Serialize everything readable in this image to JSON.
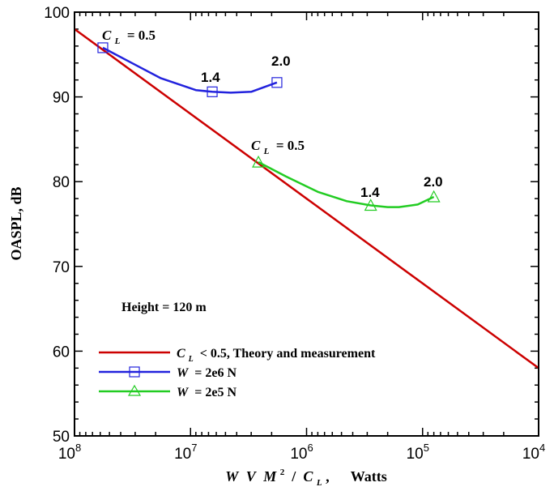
{
  "chart_data": {
    "type": "line",
    "title": "",
    "xlabel": "W V M^2 / C_L,  Watts",
    "xlabel_parts": {
      "w": "W",
      "v": "V",
      "m": "M",
      "sup": "2",
      "slash": " / ",
      "c": "C",
      "sub": "L",
      "tail": ",",
      "units": "Watts"
    },
    "ylabel": "OASPL, dB",
    "x_scale": "log",
    "x_reversed": true,
    "xlim": [
      100000000,
      10000
    ],
    "ylim": [
      50,
      100
    ],
    "x_ticks": [
      {
        "base": "10",
        "exp": "8",
        "value": 100000000
      },
      {
        "base": "10",
        "exp": "7",
        "value": 10000000
      },
      {
        "base": "10",
        "exp": "6",
        "value": 1000000
      },
      {
        "base": "10",
        "exp": "5",
        "value": 100000
      },
      {
        "base": "10",
        "exp": "4",
        "value": 10000
      }
    ],
    "y_ticks": [
      "50",
      "60",
      "70",
      "80",
      "90",
      "100"
    ],
    "legend_position": "bottom-left",
    "series": [
      {
        "name": "C_L < 0.5, Theory and measurement",
        "legend_parts": {
          "c": "C",
          "sub": "L",
          "rest": " < 0.5, Theory and measurement"
        },
        "color": "#cc0000",
        "marker": "none",
        "x": [
          100000000,
          10000
        ],
        "y": [
          98,
          58
        ]
      },
      {
        "name": "W = 2e6 N",
        "legend_parts": {
          "var": "W",
          "rest": " = 2e6 N"
        },
        "color": "#2222dd",
        "marker": "square",
        "x": [
          57000000,
          32000000,
          18000000,
          9000000,
          6500000,
          4500000,
          3000000,
          1800000
        ],
        "y": [
          95.8,
          94.0,
          92.2,
          90.8,
          90.6,
          90.5,
          90.6,
          91.7
        ],
        "marker_x": [
          57000000,
          6500000,
          1800000
        ],
        "marker_y": [
          95.8,
          90.6,
          91.7
        ],
        "marker_labels": [
          "0.5",
          "1.4",
          "2.0"
        ]
      },
      {
        "name": "W = 2e5 N",
        "legend_parts": {
          "var": "W",
          "rest": " = 2e5 N"
        },
        "color": "#22cc22",
        "marker": "triangle",
        "x": [
          2600000,
          1500000,
          800000,
          450000,
          280000,
          200000,
          160000,
          110000,
          80000
        ],
        "y": [
          82.3,
          80.6,
          78.8,
          77.7,
          77.2,
          77.0,
          77.0,
          77.3,
          78.2
        ],
        "marker_x": [
          2600000,
          280000,
          80000
        ],
        "marker_y": [
          82.3,
          77.2,
          78.2
        ],
        "marker_labels": [
          "0.5",
          "1.4",
          "2.0"
        ]
      }
    ],
    "annotations": [
      {
        "id": "height",
        "text": "Height = 120 m"
      }
    ]
  },
  "annotations_text": {
    "cl_prefix": "C",
    "cl_sub": "L",
    "cl_value": " = 0.5",
    "blue_mid": "1.4",
    "blue_end": "2.0",
    "green_mid": "1.4",
    "green_end": "2.0",
    "height": "Height = 120 m"
  }
}
